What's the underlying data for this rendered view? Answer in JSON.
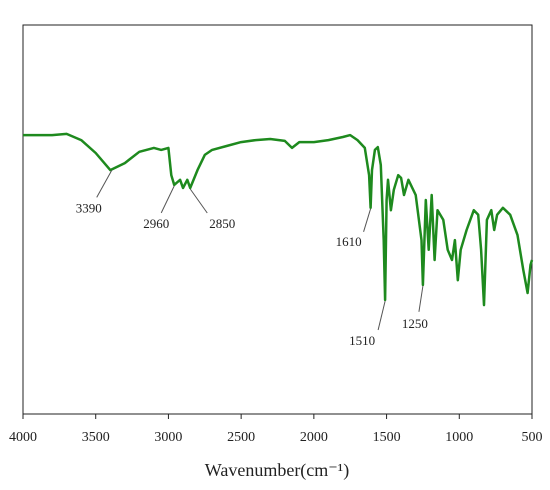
{
  "chart_data": {
    "type": "line",
    "xlabel": "Wavenumber(cm⁻¹)",
    "x": [
      4000,
      3800,
      3700,
      3600,
      3500,
      3400,
      3300,
      3200,
      3100,
      3050,
      3000,
      2980,
      2960,
      2920,
      2900,
      2870,
      2850,
      2800,
      2750,
      2700,
      2600,
      2500,
      2400,
      2300,
      2200,
      2150,
      2100,
      2000,
      1900,
      1800,
      1750,
      1700,
      1650,
      1620,
      1610,
      1600,
      1580,
      1560,
      1540,
      1520,
      1510,
      1500,
      1490,
      1470,
      1450,
      1420,
      1400,
      1380,
      1350,
      1300,
      1260,
      1250,
      1230,
      1210,
      1190,
      1170,
      1150,
      1110,
      1080,
      1050,
      1030,
      1010,
      990,
      950,
      900,
      870,
      850,
      830,
      810,
      780,
      760,
      740,
      700,
      650,
      600,
      560,
      530,
      510,
      500
    ],
    "series": [
      {
        "color": "#1e8a1e",
        "values": [
          71.7,
          71.7,
          72.0,
          70.4,
          67.1,
          62.7,
          64.5,
          67.4,
          68.4,
          67.9,
          68.4,
          61.4,
          58.9,
          60.2,
          58.1,
          60.2,
          58.1,
          62.7,
          66.6,
          67.9,
          68.9,
          69.9,
          70.4,
          70.7,
          70.2,
          68.4,
          69.9,
          69.9,
          70.4,
          71.2,
          71.7,
          70.4,
          68.4,
          61.4,
          53.0,
          62.7,
          67.9,
          68.6,
          64.0,
          44.7,
          29.3,
          55.0,
          60.2,
          52.4,
          57.6,
          61.4,
          60.7,
          56.3,
          60.2,
          56.3,
          44.7,
          33.2,
          55.0,
          42.2,
          56.3,
          39.6,
          52.4,
          49.9,
          42.2,
          39.6,
          44.7,
          34.4,
          42.2,
          47.3,
          52.4,
          51.2,
          42.2,
          28.0,
          49.9,
          52.4,
          47.3,
          51.2,
          53.0,
          51.2,
          46.0,
          37.0,
          31.1,
          38.3,
          39.6
        ]
      }
    ],
    "xlim": [
      4000,
      500
    ],
    "xticks": [
      4000,
      3500,
      3000,
      2500,
      2000,
      1500,
      1000,
      500
    ],
    "ylim": [
      0,
      100
    ],
    "annotations": [
      {
        "text": "3390",
        "x": 3390
      },
      {
        "text": "2960",
        "x": 2960
      },
      {
        "text": "2850",
        "x": 2850
      },
      {
        "text": "1610",
        "x": 1610
      },
      {
        "text": "1510",
        "x": 1510
      },
      {
        "text": "1250",
        "x": 1250
      }
    ]
  }
}
